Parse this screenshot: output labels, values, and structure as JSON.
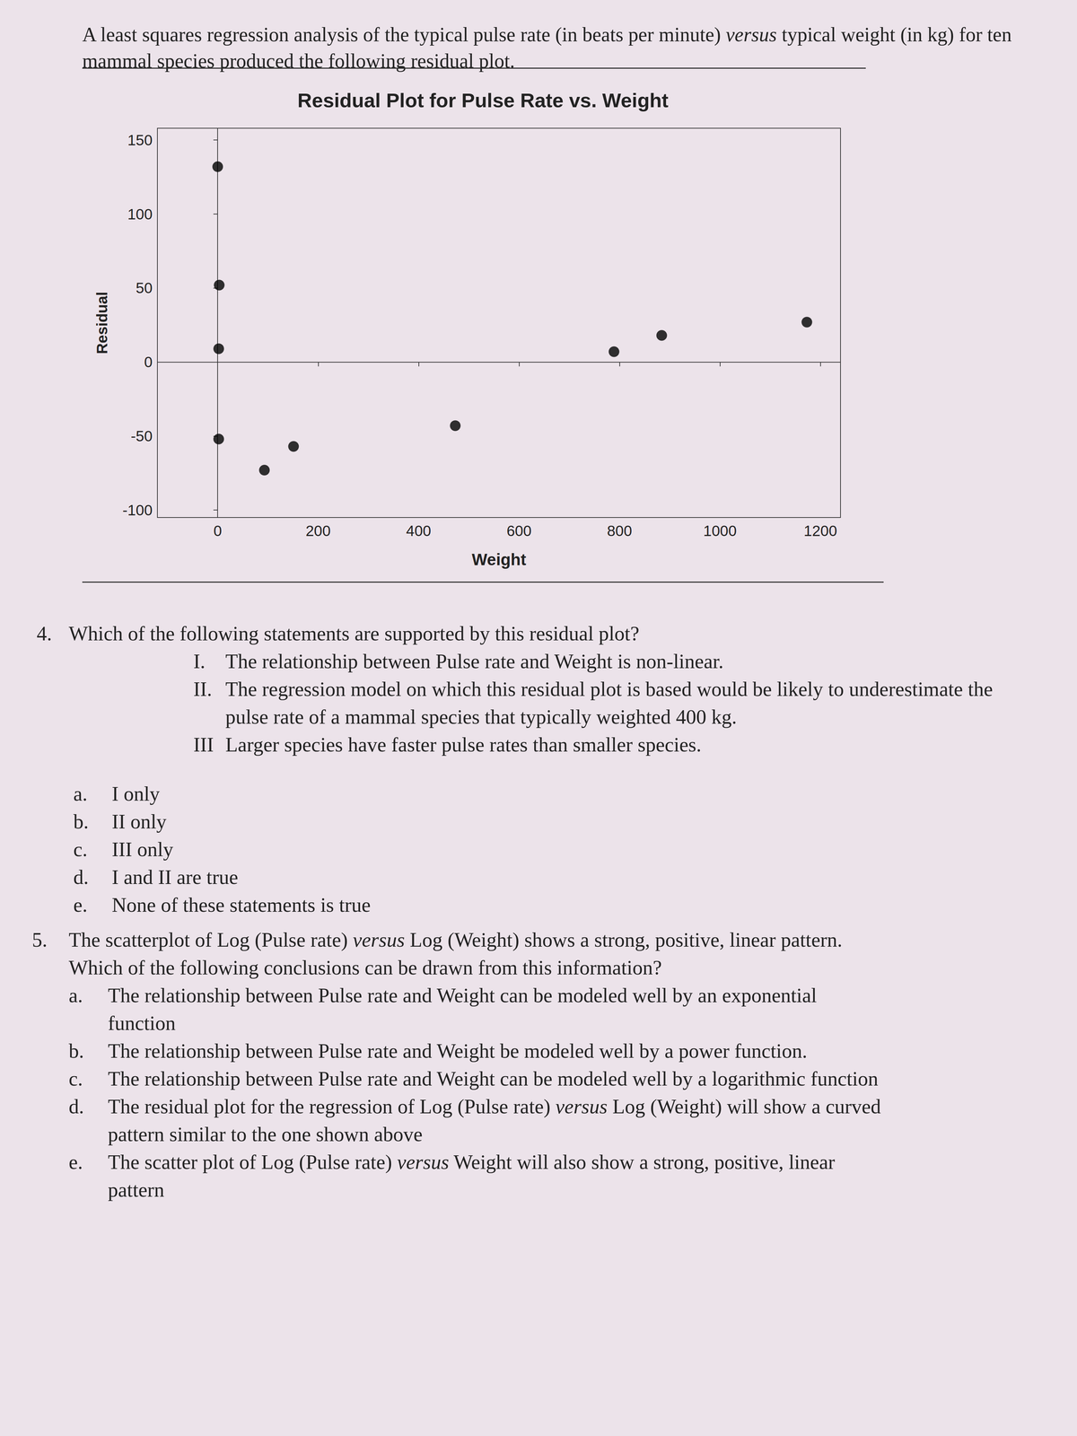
{
  "intro": [
    {
      "text": "A least squares regression analysis of the typical pulse rate (in beats per minute) ",
      "italic": false
    },
    {
      "text": "versus",
      "italic": true
    },
    {
      "text": " typical weight (in kg) for ten mammal species produced the following residual plot.",
      "italic": false
    }
  ],
  "chart_data": {
    "type": "scatter",
    "title": "Residual Plot for Pulse Rate vs. Weight",
    "x_label": "Weight",
    "y_label": "Residual",
    "x": [
      0,
      3,
      2,
      2,
      93,
      151,
      473,
      789,
      884,
      1173
    ],
    "values": [
      132,
      52,
      9,
      -52,
      -73,
      -57,
      -43,
      7,
      18,
      27
    ],
    "xlim": [
      -120,
      1240
    ],
    "ylim": [
      -105,
      158
    ],
    "xticks": [
      0,
      200,
      400,
      600,
      800,
      1000,
      1200
    ],
    "yticks": [
      -100,
      -50,
      0,
      50,
      100,
      150
    ],
    "reference_line": {
      "y": 0
    },
    "color": "#000000",
    "marker": "circle",
    "grid": false
  },
  "questions": [
    {
      "number": "4.",
      "text": [
        {
          "text": "Which of the following statements are supported by this residual plot?",
          "italic": false
        }
      ],
      "statements": [
        {
          "label": "I.",
          "text": "The relationship between Pulse rate and Weight is non-linear."
        },
        {
          "label": "II.",
          "text": "The regression model on which this residual plot is based would be likely to underestimate the pulse rate of a mammal species that typically weighted 400 kg."
        },
        {
          "label": "III",
          "text": "Larger species have faster pulse rates than smaller species."
        }
      ],
      "choices": [
        {
          "label": "a.",
          "text": [
            {
              "text": "I only",
              "italic": false
            }
          ]
        },
        {
          "label": "b.",
          "text": [
            {
              "text": "II only",
              "italic": false
            }
          ]
        },
        {
          "label": "c.",
          "text": [
            {
              "text": "III only",
              "italic": false
            }
          ]
        },
        {
          "label": "d.",
          "text": [
            {
              "text": "I and II are true",
              "italic": false
            }
          ]
        },
        {
          "label": "e.",
          "text": [
            {
              "text": "None of these statements is true",
              "italic": false
            }
          ]
        }
      ]
    },
    {
      "number": "5.",
      "text": [
        {
          "text": "The scatterplot of Log (Pulse rate) ",
          "italic": false
        },
        {
          "text": "versus",
          "italic": true
        },
        {
          "text": " Log (Weight) shows a strong, positive, linear pattern. Which of the following conclusions can be drawn from this information?",
          "italic": false
        }
      ],
      "statements": [],
      "choices": [
        {
          "label": "a.",
          "text": [
            {
              "text": "The relationship between Pulse rate and Weight can be modeled well by an exponential function",
              "italic": false
            }
          ]
        },
        {
          "label": "b.",
          "text": [
            {
              "text": "The relationship between Pulse rate and Weight be modeled well by a power function.",
              "italic": false
            }
          ]
        },
        {
          "label": "c.",
          "text": [
            {
              "text": "The relationship between Pulse rate and Weight can be modeled well by a logarithmic function",
              "italic": false
            }
          ]
        },
        {
          "label": "d.",
          "text": [
            {
              "text": "The residual plot for the regression of Log (Pulse rate) ",
              "italic": false
            },
            {
              "text": "versus",
              "italic": true
            },
            {
              "text": " Log (Weight) will show a curved pattern similar to the one shown above",
              "italic": false
            }
          ]
        },
        {
          "label": "e.",
          "text": [
            {
              "text": "The scatter plot of Log (Pulse rate) ",
              "italic": false
            },
            {
              "text": "versus",
              "italic": true
            },
            {
              "text": " Weight will also show a strong, positive, linear pattern",
              "italic": false
            }
          ]
        }
      ]
    }
  ]
}
